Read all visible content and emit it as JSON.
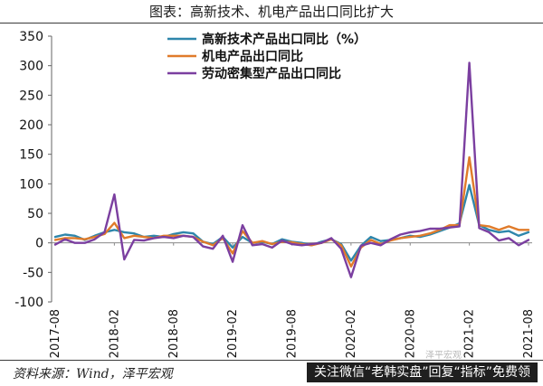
{
  "title": "图表：高新技术、机电产品出口同比扩大",
  "source": "资料来源：Wind，泽平宏观",
  "banner": "关注微信“老韩实盘”回复“指标”免费领",
  "watermark": "泽平宏观",
  "chart_data": {
    "type": "line",
    "ylim": [
      -100,
      350
    ],
    "yticks": [
      -100,
      -50,
      0,
      50,
      100,
      150,
      200,
      250,
      300,
      350
    ],
    "x_tick_labels": [
      "2017-08",
      "2018-02",
      "2018-08",
      "2019-02",
      "2019-08",
      "2020-02",
      "2020-08",
      "2021-02",
      "2021-08"
    ],
    "x": [
      "2017-08",
      "2017-09",
      "2017-10",
      "2017-11",
      "2017-12",
      "2018-01",
      "2018-02",
      "2018-03",
      "2018-04",
      "2018-05",
      "2018-06",
      "2018-07",
      "2018-08",
      "2018-09",
      "2018-10",
      "2018-11",
      "2018-12",
      "2019-01",
      "2019-02",
      "2019-03",
      "2019-04",
      "2019-05",
      "2019-06",
      "2019-07",
      "2019-08",
      "2019-09",
      "2019-10",
      "2019-11",
      "2019-12",
      "2020-01",
      "2020-02",
      "2020-03",
      "2020-04",
      "2020-05",
      "2020-06",
      "2020-07",
      "2020-08",
      "2020-09",
      "2020-10",
      "2020-11",
      "2020-12",
      "2021-01",
      "2021-02",
      "2021-03",
      "2021-04",
      "2021-05",
      "2021-06",
      "2021-07",
      "2021-08"
    ],
    "grid": false,
    "legend_position": "top-center",
    "series": [
      {
        "name": "高新技术产品出口同比（%）",
        "color": "#2e86ab",
        "values": [
          10,
          14,
          12,
          5,
          12,
          18,
          22,
          18,
          16,
          10,
          12,
          10,
          15,
          18,
          16,
          2,
          -2,
          10,
          -8,
          10,
          0,
          2,
          -2,
          6,
          2,
          0,
          -4,
          2,
          6,
          -2,
          -30,
          -5,
          10,
          3,
          5,
          8,
          12,
          10,
          14,
          20,
          26,
          33,
          98,
          30,
          22,
          18,
          20,
          12,
          18
        ]
      },
      {
        "name": "机电产品出口同比",
        "color": "#e07b2a",
        "values": [
          5,
          8,
          8,
          6,
          10,
          15,
          34,
          8,
          12,
          10,
          8,
          12,
          12,
          12,
          10,
          2,
          -4,
          8,
          -18,
          20,
          0,
          3,
          -2,
          2,
          1,
          -2,
          -4,
          0,
          6,
          -4,
          -40,
          -8,
          5,
          -2,
          4,
          8,
          10,
          12,
          16,
          22,
          30,
          30,
          145,
          30,
          28,
          22,
          28,
          22,
          22
        ]
      },
      {
        "name": "劳动密集型产品出口同比",
        "color": "#7b3fa0",
        "values": [
          -3,
          6,
          0,
          0,
          6,
          18,
          82,
          -28,
          5,
          4,
          8,
          10,
          8,
          12,
          10,
          -6,
          -10,
          12,
          -32,
          30,
          -4,
          -2,
          -8,
          4,
          -2,
          -4,
          -2,
          0,
          8,
          -10,
          -58,
          -5,
          0,
          -4,
          6,
          14,
          18,
          20,
          24,
          24,
          26,
          28,
          305,
          25,
          18,
          4,
          8,
          -4,
          5
        ]
      }
    ]
  }
}
